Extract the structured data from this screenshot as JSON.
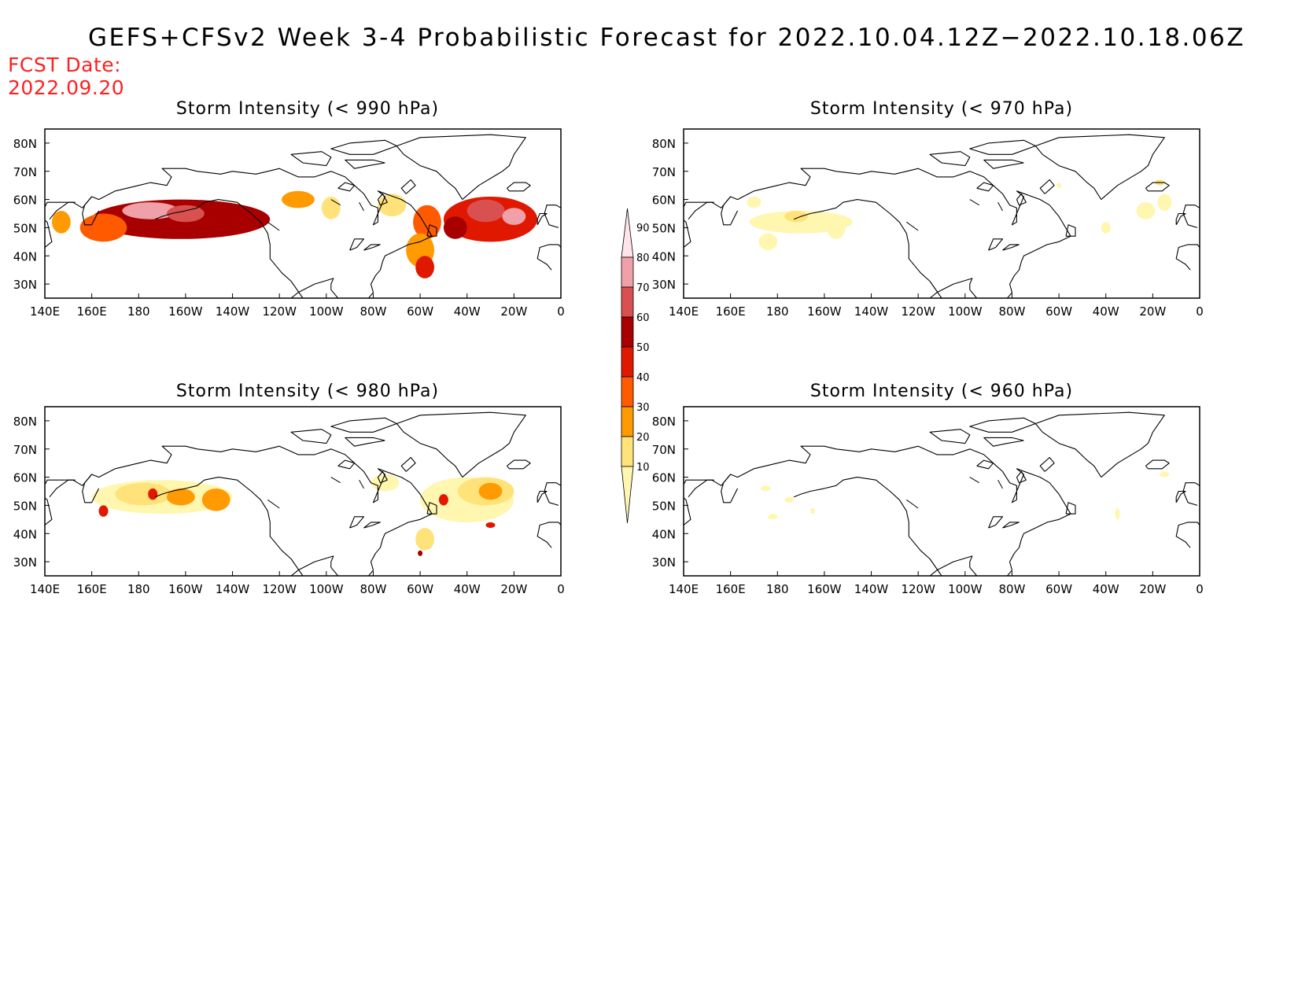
{
  "title": "GEFS+CFSv2 Week 3-4 Probabilistic Forecast for 2022.10.04.12Z−2022.10.18.06Z",
  "forecast_date_label": "FCST Date:",
  "forecast_date": "2022.09.20",
  "colors": {
    "levels": [
      "#fff6b0",
      "#ffe27a",
      "#ff9a00",
      "#ff5a00",
      "#e01800",
      "#a80000",
      "#d95050",
      "#f0a0a8",
      "#ffe4ea"
    ],
    "fcst_text": "#ff2020"
  },
  "colorbar": {
    "labels": [
      "10",
      "20",
      "30",
      "40",
      "50",
      "60",
      "70",
      "80",
      "90"
    ]
  },
  "axes": {
    "lon_labels": [
      "140E",
      "160E",
      "180",
      "160W",
      "140W",
      "120W",
      "100W",
      "80W",
      "60W",
      "40W",
      "20W",
      "0"
    ],
    "lat_labels": [
      "80N",
      "70N",
      "60N",
      "50N",
      "40N",
      "30N"
    ]
  },
  "panels": [
    {
      "title": "Storm Intensity (< 990 hPa)",
      "blobs": [
        {
          "lon": 198,
          "lat": 53,
          "rlon": 38,
          "rlat": 7,
          "lvl": 5
        },
        {
          "lon": 185,
          "lat": 56,
          "rlon": 12,
          "rlat": 3,
          "lvl": 7
        },
        {
          "lon": 200,
          "lat": 55,
          "rlon": 8,
          "rlat": 3,
          "lvl": 6
        },
        {
          "lon": 165,
          "lat": 50,
          "rlon": 10,
          "rlat": 5,
          "lvl": 3
        },
        {
          "lon": 147,
          "lat": 52,
          "rlon": 4,
          "rlat": 4,
          "lvl": 2
        },
        {
          "lon": 248,
          "lat": 60,
          "rlon": 7,
          "rlat": 3,
          "lvl": 2
        },
        {
          "lon": 262,
          "lat": 57,
          "rlon": 4,
          "rlat": 4,
          "lvl": 1
        },
        {
          "lon": 288,
          "lat": 58,
          "rlon": 6,
          "rlat": 4,
          "lvl": 1
        },
        {
          "lon": 303,
          "lat": 52,
          "rlon": 6,
          "rlat": 6,
          "lvl": 3
        },
        {
          "lon": 300,
          "lat": 42,
          "rlon": 6,
          "rlat": 6,
          "lvl": 2
        },
        {
          "lon": 302,
          "lat": 36,
          "rlon": 4,
          "rlat": 4,
          "lvl": 4
        },
        {
          "lon": 330,
          "lat": 53,
          "rlon": 20,
          "rlat": 8,
          "lvl": 4
        },
        {
          "lon": 328,
          "lat": 56,
          "rlon": 8,
          "rlat": 4,
          "lvl": 6
        },
        {
          "lon": 340,
          "lat": 54,
          "rlon": 5,
          "rlat": 3,
          "lvl": 7
        },
        {
          "lon": 315,
          "lat": 50,
          "rlon": 5,
          "rlat": 4,
          "lvl": 5
        }
      ]
    },
    {
      "title": "Storm Intensity (< 970 hPa)",
      "blobs": [
        {
          "lon": 190,
          "lat": 52,
          "rlon": 22,
          "rlat": 4,
          "lvl": 0
        },
        {
          "lon": 188,
          "lat": 54,
          "rlon": 5,
          "rlat": 2,
          "lvl": 1
        },
        {
          "lon": 176,
          "lat": 45,
          "rlon": 4,
          "rlat": 3,
          "lvl": 0
        },
        {
          "lon": 205,
          "lat": 50,
          "rlon": 4,
          "rlat": 4,
          "lvl": 0
        },
        {
          "lon": 170,
          "lat": 59,
          "rlon": 3,
          "rlat": 2,
          "lvl": 0
        },
        {
          "lon": 337,
          "lat": 56,
          "rlon": 4,
          "rlat": 3,
          "lvl": 0
        },
        {
          "lon": 345,
          "lat": 59,
          "rlon": 3,
          "rlat": 3,
          "lvl": 0
        },
        {
          "lon": 343,
          "lat": 66,
          "rlon": 2,
          "rlat": 1,
          "lvl": 1
        },
        {
          "lon": 320,
          "lat": 50,
          "rlon": 2,
          "rlat": 2,
          "lvl": 0
        },
        {
          "lon": 300,
          "lat": 65,
          "rlon": 1,
          "rlat": 1,
          "lvl": 0
        }
      ]
    },
    {
      "title": "Storm Intensity (< 980 hPa)",
      "blobs": [
        {
          "lon": 190,
          "lat": 53,
          "rlon": 30,
          "rlat": 6,
          "lvl": 0
        },
        {
          "lon": 182,
          "lat": 54,
          "rlon": 12,
          "rlat": 4,
          "lvl": 1
        },
        {
          "lon": 198,
          "lat": 53,
          "rlon": 6,
          "rlat": 3,
          "lvl": 2
        },
        {
          "lon": 213,
          "lat": 52,
          "rlon": 6,
          "rlat": 4,
          "lvl": 2
        },
        {
          "lon": 186,
          "lat": 54,
          "rlon": 2,
          "rlat": 2,
          "lvl": 4
        },
        {
          "lon": 165,
          "lat": 48,
          "rlon": 2,
          "rlat": 2,
          "lvl": 4
        },
        {
          "lon": 320,
          "lat": 52,
          "rlon": 20,
          "rlat": 8,
          "lvl": 0
        },
        {
          "lon": 328,
          "lat": 55,
          "rlon": 12,
          "rlat": 5,
          "lvl": 1
        },
        {
          "lon": 330,
          "lat": 55,
          "rlon": 5,
          "rlat": 3,
          "lvl": 2
        },
        {
          "lon": 310,
          "lat": 52,
          "rlon": 2,
          "rlat": 2,
          "lvl": 4
        },
        {
          "lon": 330,
          "lat": 43,
          "rlon": 2,
          "rlat": 1,
          "lvl": 4
        },
        {
          "lon": 302,
          "lat": 38,
          "rlon": 4,
          "rlat": 4,
          "lvl": 1
        },
        {
          "lon": 300,
          "lat": 33,
          "rlon": 1,
          "rlat": 1,
          "lvl": 5
        },
        {
          "lon": 285,
          "lat": 58,
          "rlon": 6,
          "rlat": 3,
          "lvl": 0
        }
      ]
    },
    {
      "title": "Storm Intensity (< 960 hPa)",
      "blobs": [
        {
          "lon": 175,
          "lat": 56,
          "rlon": 2,
          "rlat": 1,
          "lvl": 0
        },
        {
          "lon": 178,
          "lat": 46,
          "rlon": 2,
          "rlat": 1,
          "lvl": 0
        },
        {
          "lon": 185,
          "lat": 52,
          "rlon": 2,
          "rlat": 1,
          "lvl": 0
        },
        {
          "lon": 195,
          "lat": 48,
          "rlon": 1,
          "rlat": 1,
          "lvl": 0
        },
        {
          "lon": 325,
          "lat": 47,
          "rlon": 1,
          "rlat": 2,
          "lvl": 0
        },
        {
          "lon": 345,
          "lat": 61,
          "rlon": 2,
          "rlat": 1,
          "lvl": 0
        }
      ]
    }
  ]
}
